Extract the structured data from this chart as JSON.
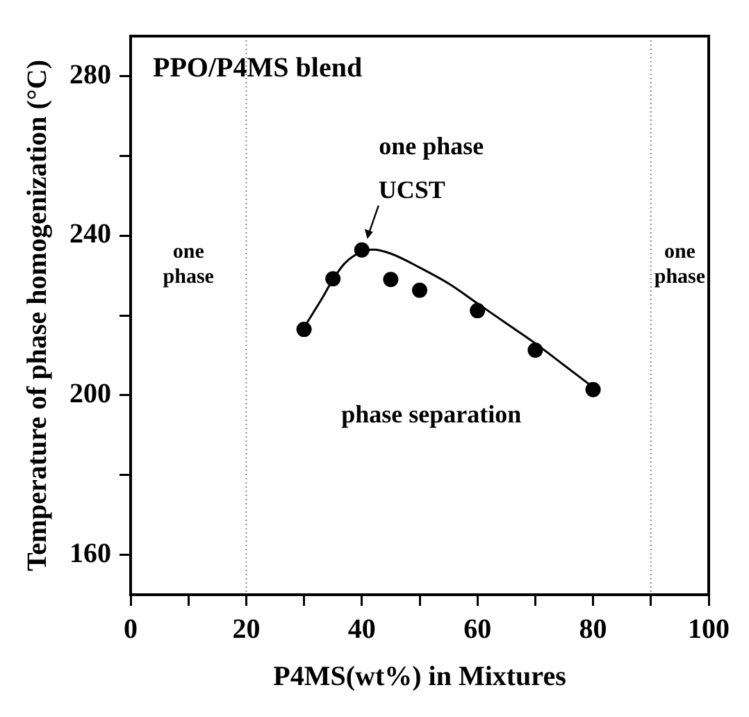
{
  "chart_data": {
    "type": "scatter",
    "title": "PPO/P4MS blend",
    "xlabel": "P4MS(wt%) in Mixtures",
    "ylabel": "Temperature of phase homogenization (°C)",
    "xlim": [
      0,
      100
    ],
    "xticks": [
      0,
      {
        "value": 10,
        "label": null
      },
      20,
      {
        "value": 30,
        "label": null
      },
      40,
      {
        "value": 50,
        "label": null
      },
      60,
      {
        "value": 70,
        "label": null
      },
      80,
      {
        "value": 90,
        "label": null
      },
      100
    ],
    "ylim": [
      150,
      290
    ],
    "yticks": [
      160,
      {
        "value": 180,
        "label": null
      },
      200,
      {
        "value": 220,
        "label": null
      },
      240,
      {
        "value": 260,
        "label": null
      },
      280
    ],
    "grid": false,
    "legend": false,
    "marker": "circle",
    "series": [
      {
        "type": "scatter",
        "color": "#000000",
        "x": [
          30,
          35,
          40,
          45,
          50,
          60,
          70,
          80
        ],
        "values": [
          216.5,
          229.2,
          236.4,
          229,
          226.3,
          221.2,
          211.3,
          201.4
        ]
      },
      {
        "type": "line",
        "color": "#000000",
        "marker": "none",
        "line_style": "solid",
        "x": [
          30,
          33,
          35,
          37,
          40,
          42,
          45,
          50,
          55,
          60,
          65,
          70,
          75,
          80
        ],
        "values": [
          217,
          224,
          229,
          233,
          236,
          236.5,
          235.5,
          232,
          228,
          223,
          218,
          213,
          207.5,
          202
        ]
      }
    ],
    "ref_lines": [
      {
        "axis": "x",
        "value": 20,
        "color": "#888888",
        "line_style": "dotted"
      },
      {
        "axis": "x",
        "value": 90,
        "color": "#888888",
        "line_style": "dotted"
      }
    ],
    "annotations": [
      "one phase",
      "one\nphase",
      "one\nphase",
      {
        "text": "UCST",
        "x": 40,
        "y": 236.4
      },
      "phase separation"
    ]
  }
}
